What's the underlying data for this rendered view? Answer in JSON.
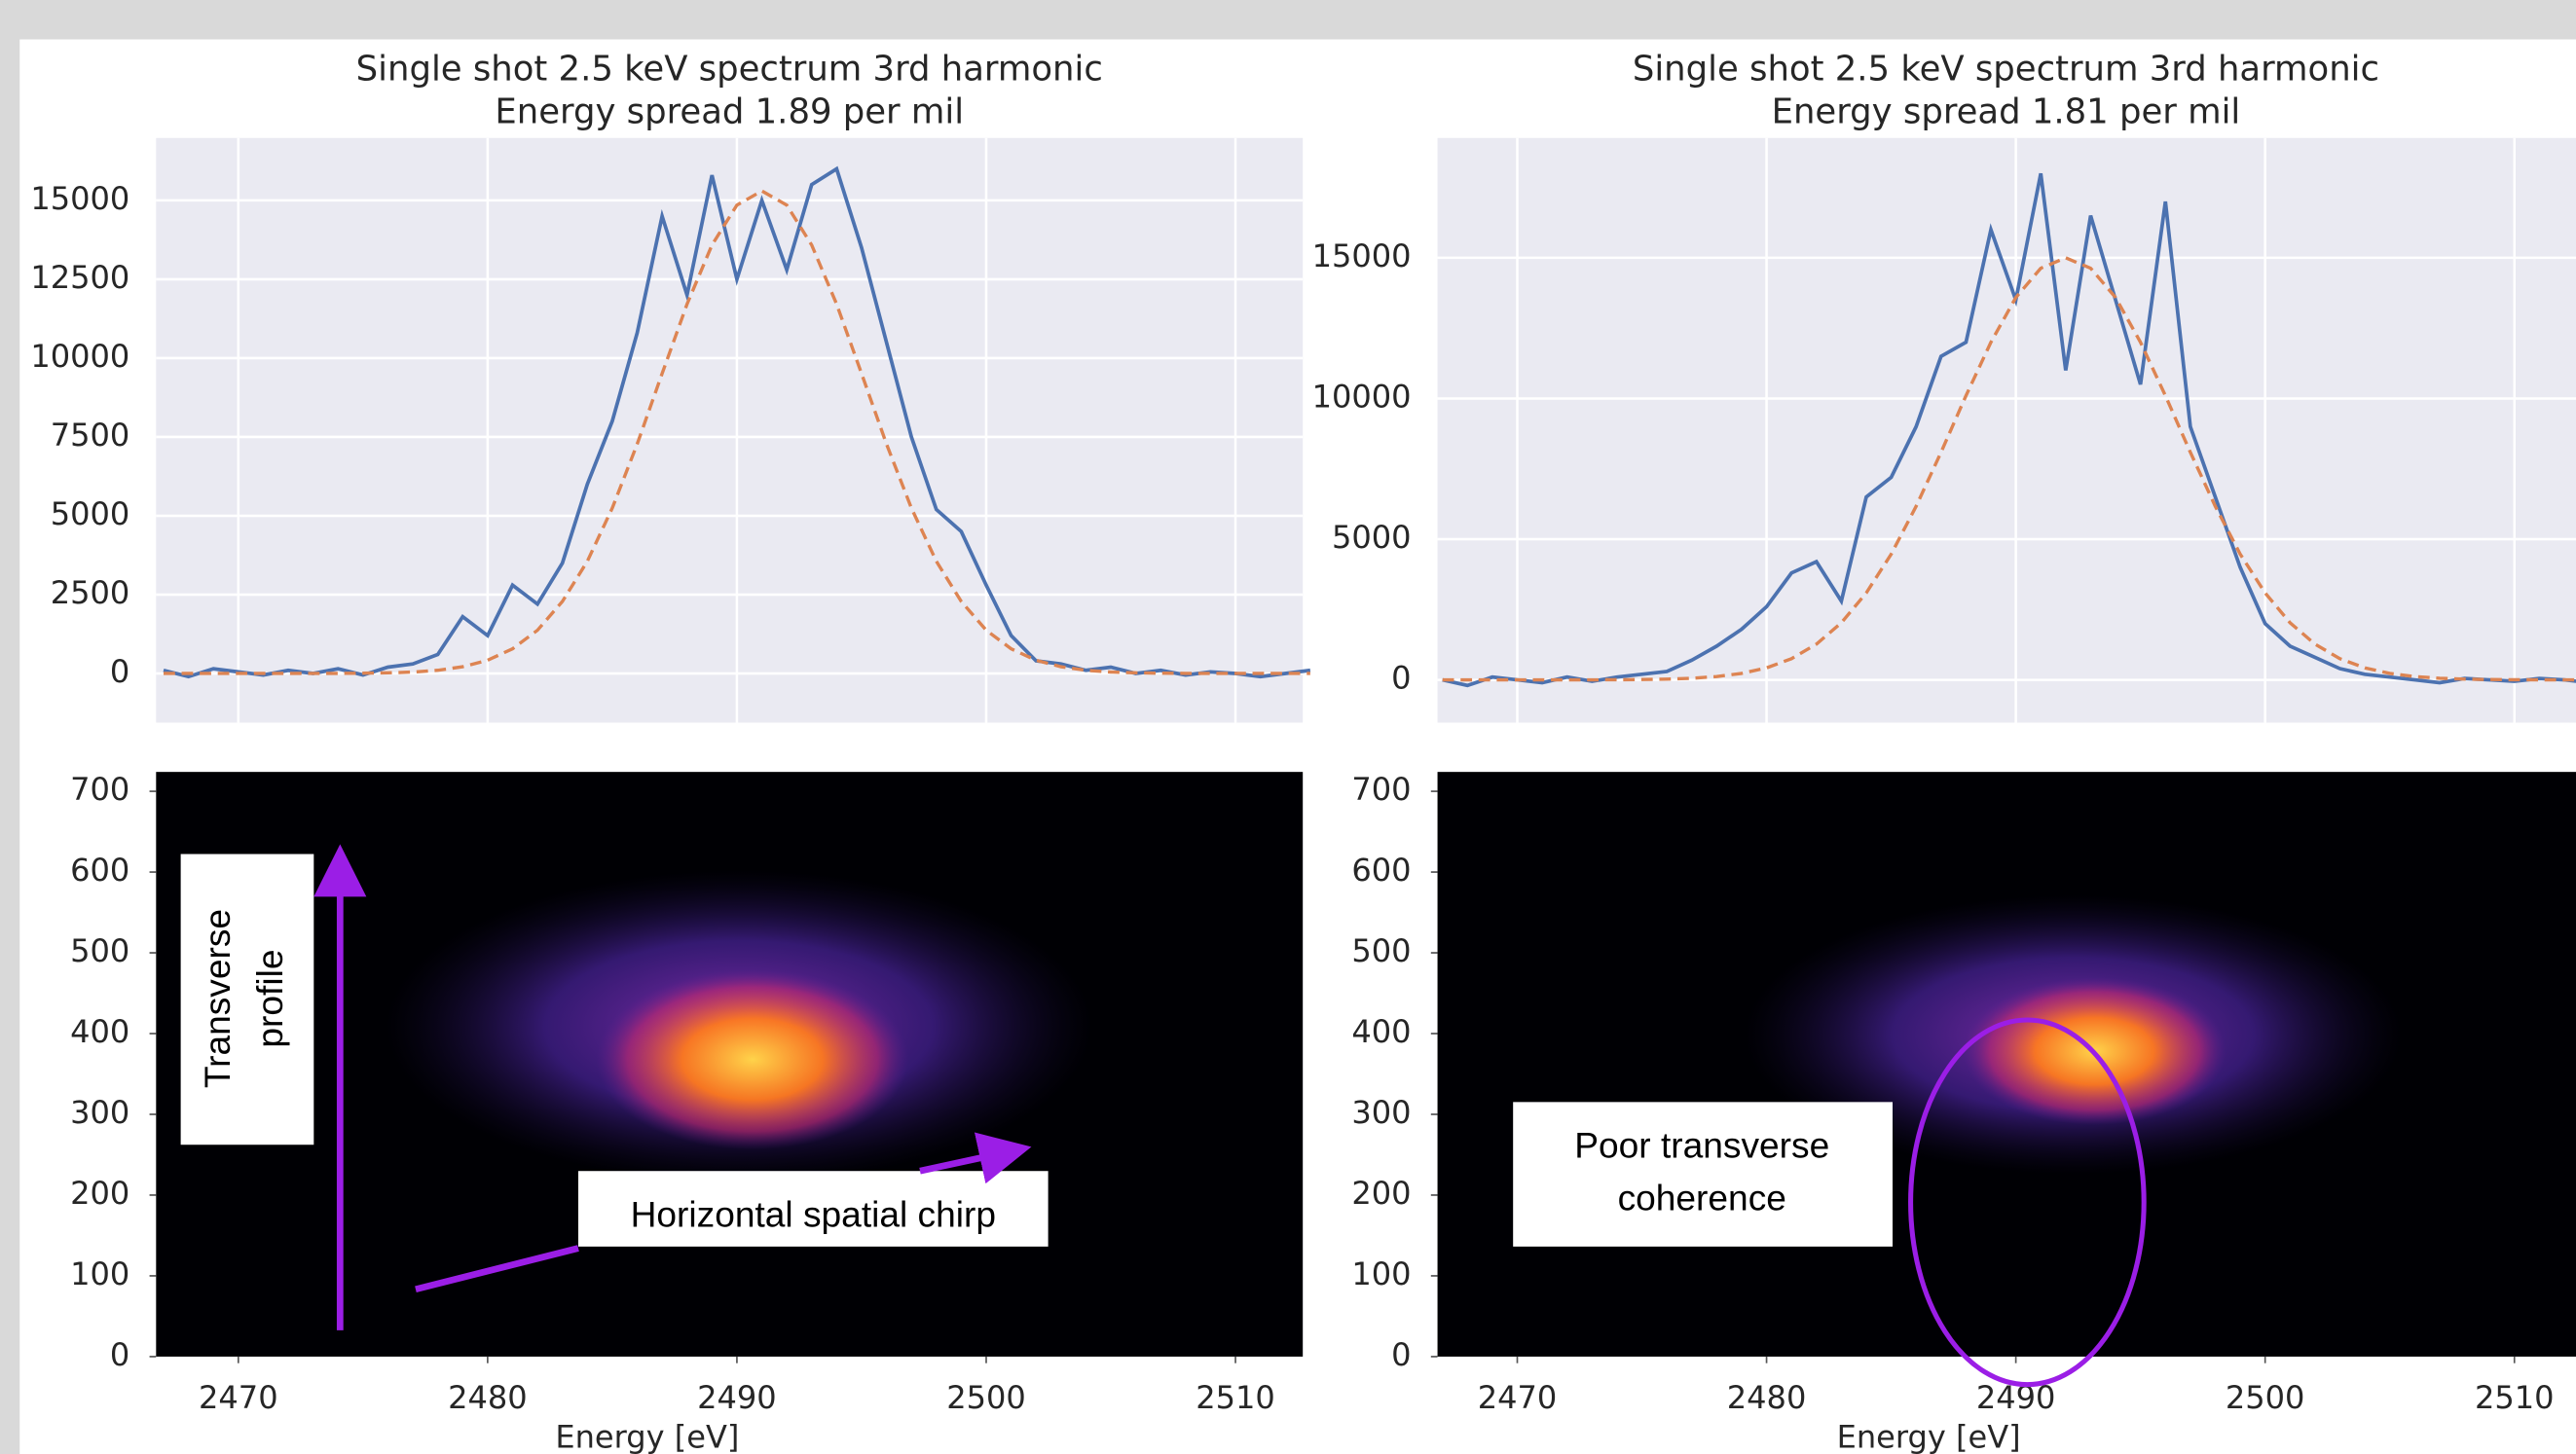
{
  "chart_data": [
    {
      "type": "line",
      "title": "Single shot 2.5 keV spectrum 3rd harmonic",
      "subtitle": "Energy spread 1.89 per mil",
      "x": [
        2467,
        2468,
        2469,
        2470,
        2471,
        2472,
        2473,
        2474,
        2475,
        2476,
        2477,
        2478,
        2479,
        2480,
        2481,
        2482,
        2483,
        2484,
        2485,
        2486,
        2487,
        2488,
        2489,
        2490,
        2491,
        2492,
        2493,
        2494,
        2495,
        2496,
        2497,
        2498,
        2499,
        2500,
        2501,
        2502,
        2503,
        2504,
        2505,
        2506,
        2507,
        2508,
        2509,
        2510,
        2511,
        2512,
        2513
      ],
      "series": [
        {
          "color": "#4c72b0",
          "values": [
            100,
            -100,
            150,
            50,
            -50,
            100,
            0,
            150,
            -50,
            200,
            300,
            600,
            1800,
            1200,
            2800,
            2200,
            3500,
            6000,
            8000,
            10800,
            14500,
            12000,
            15800,
            12500,
            15000,
            12800,
            15500,
            16000,
            13500,
            10500,
            7500,
            5200,
            4500,
            2800,
            1200,
            400,
            300,
            100,
            200,
            0,
            100,
            -50,
            50,
            0,
            -100,
            0,
            100
          ]
        },
        {
          "color": "#dd8452",
          "dashed": true,
          "values": [
            0,
            0,
            0,
            0,
            0,
            0,
            1,
            3,
            8,
            19,
            45,
            100,
            212,
            419,
            782,
            1371,
            2283,
            3558,
            5243,
            7275,
            9510,
            11710,
            13585,
            14850,
            15300,
            14850,
            13585,
            11710,
            9510,
            7275,
            5243,
            3558,
            2283,
            1371,
            782,
            419,
            212,
            100,
            45,
            19,
            8,
            3,
            1,
            0,
            0,
            0,
            0
          ]
        }
      ],
      "xlim": [
        2466.7,
        2512.7
      ],
      "ylim": [
        -1560,
        16980
      ],
      "xticks": [
        2470,
        2480,
        2490,
        2500,
        2510
      ],
      "yticks": [
        0,
        2500,
        5000,
        7500,
        10000,
        12500,
        15000
      ],
      "grid": true,
      "xtick_labels_shown": false
    },
    {
      "type": "line",
      "title": "Single shot 2.5 keV spectrum 3rd harmonic",
      "subtitle": "Energy spread 1.81 per mil",
      "x": [
        2467,
        2468,
        2469,
        2470,
        2471,
        2472,
        2473,
        2474,
        2475,
        2476,
        2477,
        2478,
        2479,
        2480,
        2481,
        2482,
        2483,
        2484,
        2485,
        2486,
        2487,
        2488,
        2489,
        2490,
        2491,
        2492,
        2493,
        2494,
        2495,
        2496,
        2497,
        2498,
        2499,
        2500,
        2501,
        2502,
        2503,
        2504,
        2505,
        2506,
        2507,
        2508,
        2509,
        2510,
        2511,
        2512,
        2513
      ],
      "series": [
        {
          "color": "#4c72b0",
          "values": [
            0,
            -200,
            100,
            0,
            -100,
            100,
            -50,
            100,
            200,
            300,
            700,
            1200,
            1800,
            2600,
            3800,
            4200,
            2800,
            6500,
            7200,
            9000,
            11500,
            12000,
            16000,
            13500,
            18000,
            11000,
            16500,
            13500,
            10500,
            17000,
            9000,
            6500,
            4000,
            2000,
            1200,
            800,
            400,
            200,
            100,
            0,
            -100,
            50,
            0,
            -50,
            50,
            0,
            -100
          ]
        },
        {
          "color": "#dd8452",
          "dashed": true,
          "values": [
            0,
            0,
            0,
            0,
            0,
            1,
            2,
            5,
            12,
            27,
            58,
            118,
            231,
            427,
            754,
            1270,
            2030,
            3090,
            4470,
            6170,
            8090,
            10100,
            12000,
            13590,
            14630,
            15000,
            14630,
            13590,
            12000,
            10100,
            8090,
            6170,
            4470,
            3090,
            2030,
            1270,
            754,
            427,
            231,
            118,
            58,
            27,
            12,
            5,
            2,
            1,
            0
          ]
        }
      ],
      "xlim": [
        2466.8,
        2512.8
      ],
      "ylim": [
        -1520,
        19260
      ],
      "xticks": [
        2470,
        2480,
        2490,
        2500,
        2510
      ],
      "yticks": [
        0,
        5000,
        10000,
        15000
      ],
      "grid": true,
      "xtick_labels_shown": false
    },
    {
      "type": "heatmap",
      "xlabel": "Energy [eV]",
      "xlim": [
        2466.7,
        2512.7
      ],
      "ylim": [
        0,
        724
      ],
      "xticks": [
        2470,
        2480,
        2490,
        2500,
        2510
      ],
      "yticks": [
        0,
        100,
        200,
        300,
        400,
        500,
        600,
        700
      ],
      "annotations": [
        [
          "Transverse",
          "profile"
        ],
        [
          "Horizontal spatial chirp"
        ]
      ]
    },
    {
      "type": "heatmap",
      "xlabel": "Energy [eV]",
      "xlim": [
        2466.8,
        2512.8
      ],
      "ylim": [
        0,
        724
      ],
      "xticks": [
        2470,
        2480,
        2490,
        2500,
        2510
      ],
      "yticks": [
        0,
        100,
        200,
        300,
        400,
        500,
        600,
        700
      ],
      "annotations": [
        [
          "Poor transverse",
          "coherence"
        ]
      ]
    }
  ]
}
